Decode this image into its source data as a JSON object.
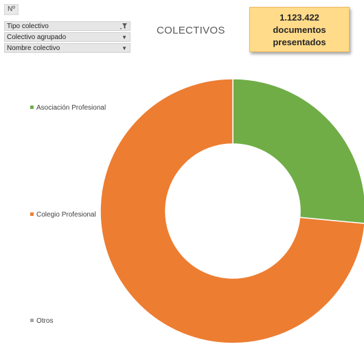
{
  "filters": {
    "no_label": "Nº",
    "items": [
      {
        "label": "Tipo colectivo",
        "icon": "filter-icon"
      },
      {
        "label": "Colectivo agrupado",
        "icon": "dropdown-icon"
      },
      {
        "label": "Nombre colectivo",
        "icon": "dropdown-icon"
      }
    ]
  },
  "kpi": {
    "value": "1.123.422",
    "line2": "documentos",
    "line3": "presentados",
    "background": "#ffdb8a"
  },
  "chart_data": {
    "type": "pie",
    "variant": "donut",
    "title": "COLECTIVOS",
    "legend_position": "left",
    "series": [
      {
        "name": "Asociación Profesional",
        "value": 26.5,
        "color": "#70ad47"
      },
      {
        "name": "Colegio Profesional",
        "value": 73.5,
        "color": "#ed7d31"
      },
      {
        "name": "Otros",
        "value": 0,
        "color": "#a5a5a5"
      }
    ]
  }
}
